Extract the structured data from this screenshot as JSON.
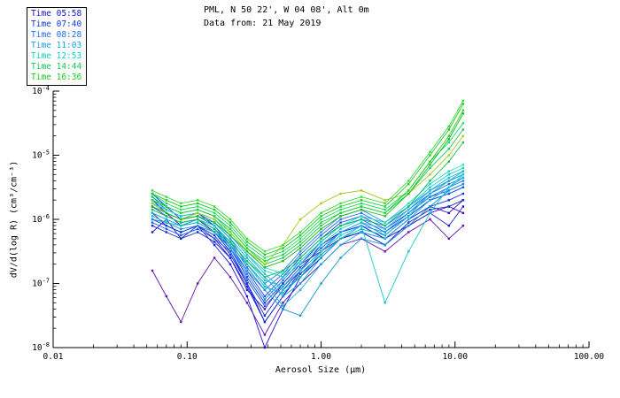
{
  "chart_data": {
    "type": "line",
    "title": "PML, N 50 22', W 04 08', Alt 0m",
    "subtitle": "Data from: 21 May 2019",
    "xlabel": "Aerosol Size (μm)",
    "ylabel": "dV/d(log R) (cm³/cm⁻³)",
    "xlim": [
      0.01,
      100
    ],
    "y_exp_range": [
      -8,
      -4
    ],
    "x_ticks": {
      "values": [
        0.01,
        0.1,
        1,
        10,
        100
      ],
      "labels": [
        "0.01",
        "0.10",
        "1.00",
        "10.00",
        "100.00"
      ]
    },
    "y_ticks": {
      "exponents": [
        -8,
        -7,
        -6,
        -5,
        -4
      ]
    },
    "x": [
      0.055,
      0.07,
      0.09,
      0.12,
      0.16,
      0.21,
      0.28,
      0.38,
      0.52,
      0.7,
      1.0,
      1.4,
      2.0,
      3.0,
      4.5,
      6.5,
      9.0,
      11.5
    ],
    "series": [
      {
        "time": "05:58",
        "color": "#2a10c8",
        "y_log10": [
          -5.7,
          -5.9,
          -6.1,
          -6.0,
          -6.2,
          -6.5,
          -7.0,
          -7.6,
          -7.2,
          -6.8,
          -6.4,
          -6.2,
          -6.1,
          -6.3,
          -6.0,
          -5.8,
          -5.9,
          -5.7
        ]
      },
      {
        "time": "05:58",
        "color": "#1c14d8",
        "y_log10": [
          -6.2,
          -6.0,
          -6.3,
          -6.1,
          -6.4,
          -6.7,
          -7.2,
          -8.0,
          -7.4,
          -6.9,
          -6.6,
          -6.3,
          -6.2,
          -6.4,
          -6.1,
          -5.9,
          -6.1,
          -5.8
        ]
      },
      {
        "time": "05:58",
        "color": "#4a0cc0",
        "y_log10": [
          -5.9,
          -6.1,
          -6.2,
          -6.1,
          -6.3,
          -6.6,
          -7.1,
          -7.4,
          -7.0,
          -6.7,
          -6.5,
          -6.3,
          -6.2,
          -6.3,
          -6.1,
          -5.9,
          -5.8,
          -5.9
        ]
      },
      {
        "time": "05:58",
        "color": "#6012b4",
        "y_log10": [
          -6.8,
          -7.2,
          -7.6,
          -7.0,
          -6.6,
          -6.9,
          -7.3,
          -7.8,
          -7.3,
          -7.0,
          -6.7,
          -6.4,
          -6.3,
          -6.5,
          -6.2,
          -6.0,
          -6.3,
          -6.1
        ]
      },
      {
        "time": "07:40",
        "color": "#1538e8",
        "y_log10": [
          -5.8,
          -5.95,
          -6.05,
          -6.0,
          -6.15,
          -6.45,
          -6.9,
          -7.3,
          -7.0,
          -6.7,
          -6.35,
          -6.1,
          -6.0,
          -6.2,
          -5.95,
          -5.7,
          -5.6,
          -5.5
        ]
      },
      {
        "time": "07:40",
        "color": "#1230dc",
        "y_log10": [
          -6.0,
          -6.1,
          -6.2,
          -6.1,
          -6.25,
          -6.55,
          -7.0,
          -7.5,
          -7.1,
          -6.8,
          -6.5,
          -6.2,
          -6.1,
          -6.3,
          -6.0,
          -5.8,
          -5.7,
          -5.6
        ]
      },
      {
        "time": "07:40",
        "color": "#1c46f0",
        "y_log10": [
          -5.6,
          -5.8,
          -6.0,
          -5.9,
          -6.1,
          -6.4,
          -6.8,
          -7.2,
          -6.9,
          -6.6,
          -6.3,
          -6.05,
          -5.95,
          -6.15,
          -5.9,
          -5.65,
          -5.55,
          -5.45
        ]
      },
      {
        "time": "07:40",
        "color": "#0f2cd0",
        "y_log10": [
          -6.1,
          -6.2,
          -6.3,
          -6.2,
          -6.35,
          -6.6,
          -7.05,
          -7.6,
          -7.2,
          -6.85,
          -6.55,
          -6.3,
          -6.2,
          -6.4,
          -6.05,
          -5.85,
          -5.8,
          -5.7
        ]
      },
      {
        "time": "08:28",
        "color": "#1b6af5",
        "y_log10": [
          -5.75,
          -5.9,
          -6.0,
          -5.95,
          -6.1,
          -6.35,
          -6.75,
          -7.1,
          -6.85,
          -6.55,
          -6.25,
          -6.0,
          -5.9,
          -6.1,
          -5.85,
          -5.6,
          -5.45,
          -5.35
        ]
      },
      {
        "time": "08:28",
        "color": "#1e78f0",
        "y_log10": [
          -5.9,
          -6.0,
          -6.1,
          -6.05,
          -6.2,
          -6.45,
          -6.85,
          -7.25,
          -6.95,
          -6.65,
          -6.35,
          -6.1,
          -6.0,
          -6.2,
          -5.9,
          -5.65,
          -5.5,
          -5.4
        ]
      },
      {
        "time": "08:28",
        "color": "#1660e8",
        "y_log10": [
          -6.05,
          -6.15,
          -6.25,
          -6.15,
          -6.3,
          -6.5,
          -6.95,
          -7.35,
          -7.05,
          -6.75,
          -6.45,
          -6.2,
          -6.05,
          -6.25,
          -5.95,
          -5.7,
          -5.6,
          -5.5
        ]
      },
      {
        "time": "08:28",
        "color": "#2584fa",
        "y_log10": [
          -5.65,
          -5.85,
          -5.95,
          -5.9,
          -6.05,
          -6.3,
          -6.7,
          -7.0,
          -6.8,
          -6.5,
          -6.2,
          -5.95,
          -5.85,
          -6.05,
          -5.8,
          -5.55,
          -5.4,
          -5.3
        ]
      },
      {
        "time": "11:03",
        "color": "#18a0f0",
        "y_log10": [
          -5.8,
          -5.9,
          -6.0,
          -5.95,
          -6.05,
          -6.3,
          -6.6,
          -6.9,
          -7.2,
          -7.0,
          -6.6,
          -6.3,
          -6.1,
          -6.2,
          -5.9,
          -5.6,
          -5.4,
          -5.3
        ]
      },
      {
        "time": "11:03",
        "color": "#12aee8",
        "y_log10": [
          -5.9,
          -6.0,
          -6.1,
          -6.0,
          -6.15,
          -6.4,
          -6.7,
          -7.0,
          -7.35,
          -7.1,
          -6.7,
          -6.4,
          -6.2,
          -6.3,
          -6.0,
          -5.7,
          -5.5,
          -5.35
        ]
      },
      {
        "time": "11:03",
        "color": "#0e96dc",
        "y_log10": [
          -6.0,
          -6.05,
          -6.15,
          -6.1,
          -6.2,
          -6.45,
          -6.8,
          -7.1,
          -7.4,
          -7.5,
          -7.0,
          -6.6,
          -6.3,
          -6.4,
          -6.1,
          -5.8,
          -5.55,
          -5.45
        ]
      },
      {
        "time": "11:03",
        "color": "#20b4f5",
        "y_log10": [
          -5.7,
          -5.85,
          -5.95,
          -5.9,
          -6.0,
          -6.25,
          -6.55,
          -6.85,
          -7.1,
          -6.9,
          -6.5,
          -6.2,
          -6.05,
          -6.15,
          -5.85,
          -5.55,
          -5.35,
          -5.25
        ]
      },
      {
        "time": "12:53",
        "color": "#0fd0c0",
        "y_log10": [
          -5.75,
          -5.85,
          -5.95,
          -5.9,
          -6.0,
          -6.25,
          -6.55,
          -6.8,
          -6.9,
          -6.7,
          -6.4,
          -6.15,
          -6.0,
          -6.1,
          -5.8,
          -5.5,
          -5.3,
          -5.2
        ]
      },
      {
        "time": "12:53",
        "color": "#12c8cc",
        "y_log10": [
          -5.85,
          -5.95,
          -6.05,
          -6.0,
          -6.1,
          -6.35,
          -6.65,
          -6.95,
          -7.05,
          -6.8,
          -6.5,
          -6.25,
          -6.1,
          -7.3,
          -6.5,
          -5.9,
          -5.5,
          -5.3
        ]
      },
      {
        "time": "12:53",
        "color": "#0abcb4",
        "y_log10": [
          -5.95,
          -6.05,
          -6.1,
          -6.05,
          -6.2,
          -6.4,
          -6.7,
          -7.05,
          -7.15,
          -6.9,
          -6.55,
          -6.3,
          -6.15,
          -6.25,
          -5.95,
          -5.6,
          -5.4,
          -5.25
        ]
      },
      {
        "time": "12:53",
        "color": "#16dcc8",
        "y_log10": [
          -5.7,
          -5.8,
          -5.9,
          -5.85,
          -5.95,
          -6.2,
          -6.5,
          -6.75,
          -6.85,
          -6.65,
          -6.35,
          -6.1,
          -5.95,
          -6.05,
          -5.75,
          -5.45,
          -5.25,
          -5.15
        ]
      },
      {
        "time": "14:44",
        "color": "#14cc5a",
        "y_log10": [
          -5.65,
          -5.8,
          -5.9,
          -5.85,
          -5.95,
          -6.15,
          -6.45,
          -6.7,
          -6.6,
          -6.4,
          -6.1,
          -5.9,
          -5.8,
          -5.9,
          -5.6,
          -5.2,
          -4.9,
          -4.6
        ]
      },
      {
        "time": "14:44",
        "color": "#a0cc14",
        "y_log10": [
          -5.75,
          -5.9,
          -6.0,
          -5.9,
          -6.0,
          -6.2,
          -6.5,
          -6.7,
          -6.4,
          -6.0,
          -5.75,
          -5.6,
          -5.55,
          -5.7,
          -5.6,
          -5.3,
          -5.0,
          -4.7
        ]
      },
      {
        "time": "14:44",
        "color": "#10c050",
        "y_log10": [
          -5.85,
          -5.95,
          -6.05,
          -6.0,
          -6.15,
          -6.35,
          -6.65,
          -6.9,
          -6.8,
          -6.6,
          -6.3,
          -6.1,
          -6.0,
          -6.1,
          -5.8,
          -5.4,
          -5.1,
          -4.8
        ]
      },
      {
        "time": "14:44",
        "color": "#1edc6e",
        "y_log10": [
          -5.6,
          -5.75,
          -5.85,
          -5.8,
          -5.9,
          -6.1,
          -6.4,
          -6.6,
          -6.5,
          -6.3,
          -6.0,
          -5.85,
          -5.75,
          -5.85,
          -5.55,
          -5.1,
          -4.8,
          -4.5
        ]
      },
      {
        "time": "16:36",
        "color": "#1ec91e",
        "y_log10": [
          -5.6,
          -5.7,
          -5.8,
          -5.75,
          -5.85,
          -6.05,
          -6.35,
          -6.55,
          -6.45,
          -6.25,
          -5.95,
          -5.8,
          -5.7,
          -5.8,
          -5.45,
          -5.0,
          -4.6,
          -4.2
        ]
      },
      {
        "time": "16:36",
        "color": "#28d228",
        "y_log10": [
          -5.7,
          -5.8,
          -5.9,
          -5.85,
          -5.95,
          -6.15,
          -6.45,
          -6.65,
          -6.55,
          -6.35,
          -6.05,
          -5.9,
          -5.8,
          -5.9,
          -5.55,
          -5.1,
          -4.7,
          -4.3
        ]
      },
      {
        "time": "16:36",
        "color": "#16be16",
        "y_log10": [
          -5.8,
          -5.9,
          -6.0,
          -5.95,
          -6.05,
          -6.25,
          -6.5,
          -6.75,
          -6.65,
          -6.45,
          -6.15,
          -5.95,
          -5.85,
          -5.95,
          -5.6,
          -5.15,
          -4.75,
          -4.35
        ]
      },
      {
        "time": "16:36",
        "color": "#32dc32",
        "y_log10": [
          -5.55,
          -5.65,
          -5.75,
          -5.7,
          -5.8,
          -6.0,
          -6.3,
          -6.5,
          -6.4,
          -6.2,
          -5.9,
          -5.75,
          -5.65,
          -5.75,
          -5.4,
          -4.95,
          -4.55,
          -4.15
        ]
      }
    ]
  },
  "legend": {
    "items": [
      {
        "label": "Time 05:58",
        "color": "#1414d2"
      },
      {
        "label": "Time 07:40",
        "color": "#1538e8"
      },
      {
        "label": "Time 08:28",
        "color": "#1b6af5"
      },
      {
        "label": "Time 11:03",
        "color": "#18a0f0"
      },
      {
        "label": "Time 12:53",
        "color": "#0fd0c0"
      },
      {
        "label": "Time 14:44",
        "color": "#14cc5a"
      },
      {
        "label": "Time 16:36",
        "color": "#1ec91e"
      }
    ]
  }
}
